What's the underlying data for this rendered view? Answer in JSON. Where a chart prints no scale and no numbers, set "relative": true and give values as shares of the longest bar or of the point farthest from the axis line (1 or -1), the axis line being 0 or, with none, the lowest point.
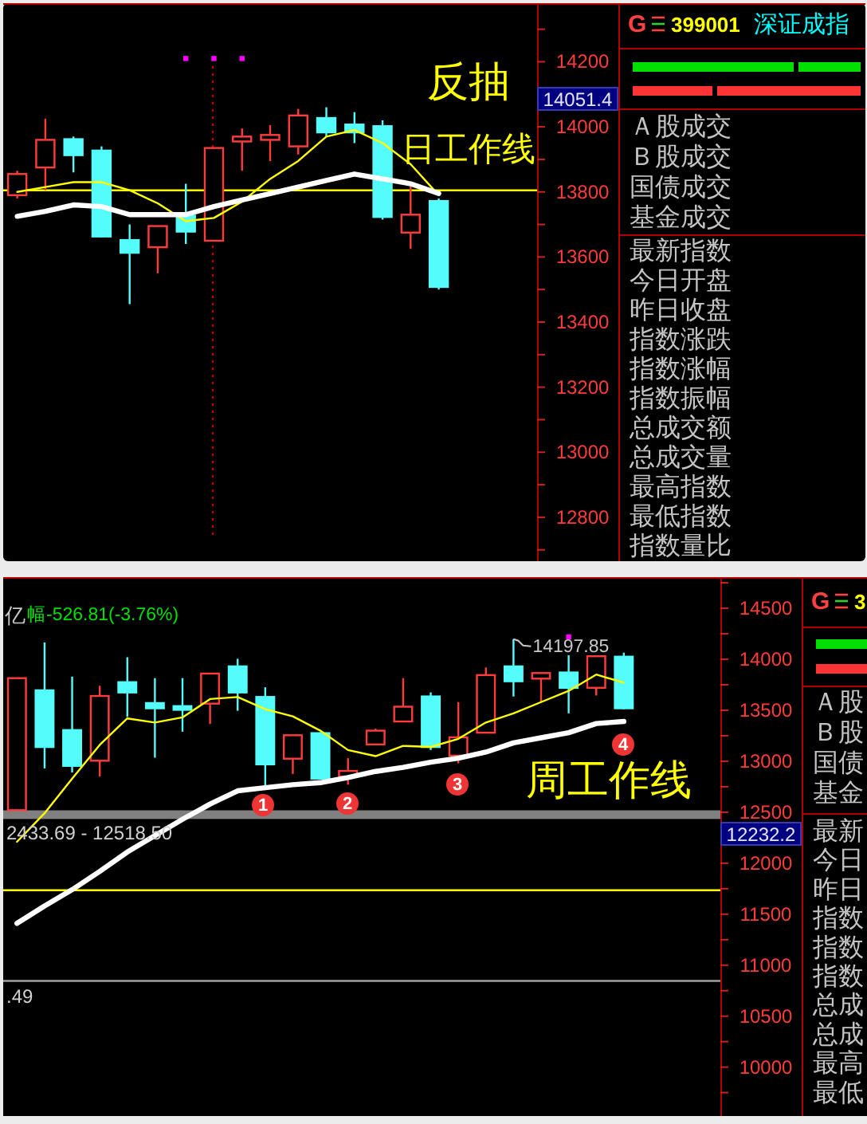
{
  "chart_data": [
    {
      "type": "candlestick",
      "categories": [
        null,
        null,
        null,
        null,
        null,
        null,
        null,
        null,
        null,
        null,
        null,
        null,
        null,
        null,
        null,
        null,
        null,
        null,
        null
      ],
      "ohlc": [
        [
          13790,
          13865,
          13780,
          13855
        ],
        [
          13875,
          14025,
          13805,
          13960
        ],
        [
          13965,
          13970,
          13860,
          13910
        ],
        [
          13930,
          13940,
          13660,
          13660
        ],
        [
          13655,
          13700,
          13455,
          13610
        ],
        [
          13630,
          13695,
          13550,
          13695
        ],
        [
          13730,
          13825,
          13640,
          13675
        ],
        [
          13650,
          13935,
          13650,
          13935
        ],
        [
          13955,
          13995,
          13865,
          13970
        ],
        [
          13960,
          14005,
          13895,
          13975
        ],
        [
          13940,
          14055,
          13915,
          14035
        ],
        [
          14030,
          14060,
          13970,
          13980
        ],
        [
          14010,
          14045,
          13950,
          13980
        ],
        [
          14005,
          14020,
          13715,
          13720
        ],
        [
          13675,
          13820,
          13625,
          13730
        ],
        [
          13775,
          13780,
          13500,
          13505
        ],
        null,
        null,
        null
      ],
      "series": [
        {
          "type": "line",
          "color": "#ffff00",
          "values": [
            13800,
            13815,
            13830,
            13830,
            13805,
            13765,
            13710,
            13720,
            13770,
            13840,
            13895,
            13970,
            13990,
            13950,
            13885,
            13790,
            null,
            null,
            null
          ]
        },
        {
          "type": "line",
          "color": "#ffffff",
          "values": [
            13725,
            13740,
            13760,
            13755,
            13730,
            13730,
            13730,
            13755,
            13775,
            13795,
            13815,
            13835,
            13855,
            13840,
            13825,
            13795,
            null,
            null,
            null
          ]
        },
        {
          "type": "scatter",
          "color": "#ff00ff",
          "marker": "square",
          "values": [
            null,
            null,
            null,
            null,
            null,
            null,
            14210,
            14210,
            14210,
            null,
            null,
            null,
            null,
            null,
            null,
            null,
            null,
            null,
            null
          ]
        }
      ],
      "ylim": [
        12665,
        14380
      ],
      "yticks": [
        {
          "value": 14300,
          "label": null
        },
        14200,
        {
          "value": 14100,
          "label": null
        },
        14000,
        {
          "value": 13900,
          "label": null
        },
        13800,
        {
          "value": 13700,
          "label": null
        },
        13600,
        {
          "value": 13500,
          "label": null
        },
        13400,
        {
          "value": 13300,
          "label": null
        },
        13200,
        {
          "value": 13100,
          "label": null
        },
        13000,
        {
          "value": 12900,
          "label": null
        },
        12800,
        {
          "value": 12700,
          "label": null
        }
      ],
      "tick_labels": "y",
      "ref_lines": [
        {
          "axis": "y",
          "value": 13805,
          "color": "#ffff00"
        }
      ],
      "annotations": [
        "反抽",
        "日工作线",
        "14051.4"
      ]
    },
    {
      "type": "other",
      "title": "G 399001 深证成指",
      "annotations": [
        "Ａ股成交",
        "Ｂ股成交",
        "国债成交",
        "基金成交",
        "最新指数",
        "今日开盘",
        "昨日收盘",
        "指数涨跌",
        "指数涨幅",
        "指数振幅",
        "总成交额",
        "总成交量",
        "最高指数",
        "最低指数",
        "指数量比"
      ]
    },
    {
      "type": "candlestick",
      "categories": [
        null,
        null,
        null,
        null,
        null,
        null,
        null,
        null,
        null,
        null,
        null,
        null,
        null,
        null,
        null,
        null,
        null,
        null,
        null,
        null,
        null,
        null,
        null,
        null,
        null,
        null
      ],
      "ohlc": [
        [
          12520,
          13815,
          12520,
          13815
        ],
        [
          13705,
          14165,
          12930,
          13130
        ],
        [
          13315,
          13830,
          12890,
          12945
        ],
        [
          13005,
          13740,
          12850,
          13640
        ],
        [
          13785,
          14020,
          13435,
          13665
        ],
        [
          13580,
          13815,
          13035,
          13510
        ],
        [
          13550,
          13815,
          13290,
          13495
        ],
        [
          13565,
          13860,
          13365,
          13860
        ],
        [
          13940,
          14005,
          13495,
          13665
        ],
        [
          13640,
          13725,
          12745,
          12960
        ],
        [
          13025,
          13255,
          12875,
          13255
        ],
        [
          13285,
          13285,
          12820,
          12820
        ],
        [
          12850,
          13030,
          12770,
          12905
        ],
        [
          13165,
          13320,
          13165,
          13300
        ],
        [
          13390,
          13815,
          13390,
          13535
        ],
        [
          13645,
          13675,
          13110,
          13130
        ],
        [
          13055,
          13580,
          12980,
          13235
        ],
        [
          13280,
          13920,
          13280,
          13845
        ],
        [
          13940,
          14197.85,
          13635,
          13775
        ],
        [
          13810,
          13865,
          13580,
          13865
        ],
        [
          13880,
          14040,
          13470,
          13710
        ],
        [
          13720,
          14030,
          13645,
          14030
        ],
        [
          14035,
          14065,
          13510,
          13510
        ],
        null,
        null,
        null
      ],
      "series": [
        {
          "type": "line",
          "color": "#ffff00",
          "values": [
            12210,
            12490,
            12830,
            13160,
            13420,
            13380,
            13430,
            13610,
            13630,
            13510,
            13440,
            13300,
            13110,
            13050,
            13150,
            13140,
            13220,
            13380,
            13470,
            13580,
            13690,
            13850,
            13770,
            null,
            null,
            null
          ]
        },
        {
          "type": "line",
          "color": "#ffffff",
          "values": [
            11410,
            11580,
            11740,
            11920,
            12110,
            12270,
            12430,
            12580,
            12710,
            12740,
            12770,
            12790,
            12840,
            12900,
            12940,
            12990,
            13030,
            13090,
            13180,
            13230,
            13280,
            13370,
            13390,
            null,
            null,
            null
          ]
        },
        {
          "type": "scatter",
          "color": "#ff00ff",
          "marker": "square",
          "values": [
            null,
            null,
            null,
            null,
            null,
            null,
            null,
            null,
            null,
            null,
            null,
            null,
            null,
            null,
            null,
            null,
            null,
            null,
            null,
            null,
            14220,
            null,
            null,
            null,
            null,
            null
          ]
        }
      ],
      "ylim": [
        9520,
        14790
      ],
      "yticks": [
        {
          "value": 14750,
          "label": null
        },
        14500,
        {
          "value": 14250,
          "label": null
        },
        14000,
        {
          "value": 13750,
          "label": null
        },
        13500,
        {
          "value": 13250,
          "label": null
        },
        13000,
        {
          "value": 12750,
          "label": null
        },
        12500,
        {
          "value": 12250,
          "label": null
        },
        12000,
        {
          "value": 11750,
          "label": null
        },
        11500,
        {
          "value": 11250,
          "label": null
        },
        11000,
        {
          "value": 10750,
          "label": null
        },
        10500,
        {
          "value": 10250,
          "label": null
        },
        10000,
        {
          "value": 9750,
          "label": null
        }
      ],
      "tick_labels": "y",
      "bands": [
        {
          "axis": "y",
          "from": 12433.69,
          "to": 12518.5,
          "color": "#808080",
          "label": "2433.69 - 12518.50"
        }
      ],
      "ref_lines": [
        {
          "axis": "y",
          "value": 11735,
          "color": "#ffff00"
        },
        {
          "axis": "y",
          "value": 10845,
          "color": "#a0a0a0"
        }
      ],
      "annotations": [
        "周工作线",
        "亿",
        "幅-526.81(-3.76%)",
        "1",
        "2",
        "3",
        "4",
        ".49",
        "12232.2",
        {
          "text": "14197.85",
          "y": 14197.85
        }
      ]
    },
    {
      "type": "other",
      "title": "G 3",
      "annotations": [
        "Ａ股",
        "Ｂ股",
        "国债",
        "基金",
        "最新",
        "今日",
        "昨日",
        "指数",
        "指数",
        "指数",
        "总成",
        "总成",
        "最高",
        "最低"
      ]
    },
    {
      "type": "bar",
      "orientation": "horizontal",
      "relative": true,
      "categories": [
        null,
        null
      ],
      "values": [
        1,
        1
      ],
      "colors": [
        "#00e000",
        "#ff3535"
      ]
    }
  ]
}
